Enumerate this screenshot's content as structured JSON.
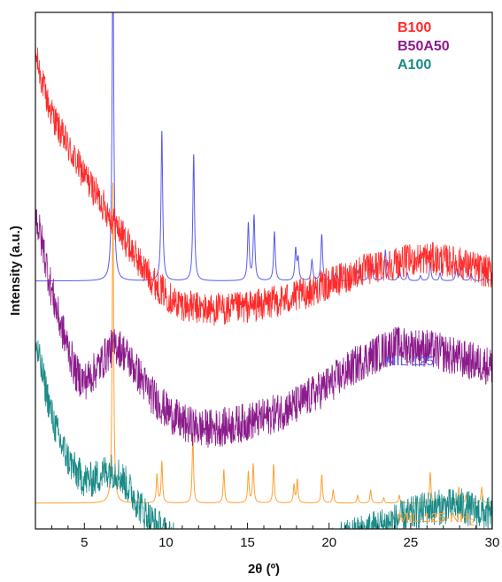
{
  "chart_data": {
    "type": "line",
    "title": "",
    "xlabel": "2θ (º)",
    "ylabel": "Intensity (a.u.)",
    "xlim": [
      2,
      30
    ],
    "x_ticks": [
      5,
      10,
      15,
      20,
      25,
      30
    ],
    "y_ticks": [],
    "grid": false,
    "legend_position": "top-right",
    "legend": [
      {
        "name": "B100",
        "color": "#ff2a2a"
      },
      {
        "name": "B50A50",
        "color": "#8b1a8b"
      },
      {
        "name": "A100",
        "color": "#1a8a86"
      }
    ],
    "series": [
      {
        "name": "B100",
        "color": "#ff2a2a",
        "noise": 3.2,
        "x": [
          2.0,
          2.3,
          2.8,
          3.5,
          4.5,
          5.5,
          6.5,
          7.5,
          8.5,
          9.5,
          10.5,
          11.5,
          12.5,
          14,
          16,
          18,
          20,
          22,
          24,
          26,
          28,
          30
        ],
        "values": [
          92,
          88,
          82,
          77,
          71,
          66,
          61,
          56,
          51,
          47,
          44,
          43,
          42.5,
          42.5,
          43.5,
          45,
          47.5,
          50,
          51.5,
          52.5,
          51.5,
          49.5
        ]
      },
      {
        "name": "B50A50",
        "color": "#8b1a8b",
        "noise": 3.8,
        "x": [
          2.0,
          2.5,
          3.0,
          3.5,
          4.0,
          4.5,
          5.0,
          5.5,
          6.0,
          6.5,
          7.0,
          7.5,
          8.0,
          8.5,
          9.0,
          10,
          11,
          12,
          13,
          14,
          16,
          18,
          20,
          22,
          24,
          26,
          28,
          30
        ],
        "values": [
          61,
          54,
          46,
          40,
          35,
          30,
          28.5,
          30,
          32,
          34.5,
          35.5,
          34,
          31.5,
          29,
          26.5,
          23,
          20.5,
          19.5,
          19.5,
          20,
          21.5,
          24,
          28,
          32.5,
          35.5,
          35,
          33,
          31.5
        ]
      },
      {
        "name": "A100",
        "color": "#1a8a86",
        "noise": 3.5,
        "x": [
          2.0,
          2.5,
          3.0,
          3.5,
          4.0,
          4.5,
          5.0,
          5.5,
          6.0,
          6.5,
          7.0,
          7.5,
          8.0,
          8.5,
          9.0,
          10,
          11,
          12,
          13,
          14,
          16,
          18,
          20,
          22,
          24,
          26,
          28,
          30
        ],
        "values": [
          36,
          29,
          22,
          17,
          13.5,
          11,
          9.5,
          9.5,
          10.5,
          11.5,
          11,
          9,
          6.5,
          4,
          2,
          -1,
          -3.5,
          -5.5,
          -6.5,
          -7,
          -6.5,
          -5,
          -3,
          -0.5,
          1.5,
          4,
          4.5,
          2.5
        ]
      }
    ],
    "reference_patterns": [
      {
        "name": "MIL-125",
        "label": "MIL-125",
        "color": "#5a5aee",
        "peaks": [
          {
            "x": 6.75,
            "h": 64
          },
          {
            "x": 9.75,
            "h": 29
          },
          {
            "x": 11.7,
            "h": 24.5
          },
          {
            "x": 15.05,
            "h": 11
          },
          {
            "x": 15.4,
            "h": 12.5
          },
          {
            "x": 16.65,
            "h": 9.5
          },
          {
            "x": 17.95,
            "h": 6
          },
          {
            "x": 18.1,
            "h": 4
          },
          {
            "x": 18.95,
            "h": 4
          },
          {
            "x": 19.55,
            "h": 9
          },
          {
            "x": 20.4,
            "h": 1.5
          },
          {
            "x": 21.75,
            "h": 2
          },
          {
            "x": 22.45,
            "h": 2
          },
          {
            "x": 22.6,
            "h": 3
          },
          {
            "x": 23.45,
            "h": 6
          },
          {
            "x": 24.3,
            "h": 3
          },
          {
            "x": 24.8,
            "h": 1.5
          },
          {
            "x": 25.6,
            "h": 1
          },
          {
            "x": 26.2,
            "h": 3.5
          },
          {
            "x": 26.8,
            "h": 1.5
          },
          {
            "x": 27.8,
            "h": 2.5
          },
          {
            "x": 28.05,
            "h": 2.5
          },
          {
            "x": 28.7,
            "h": 1.5
          },
          {
            "x": 29.6,
            "h": 2.5
          }
        ]
      },
      {
        "name": "MIL-125-NH2",
        "label_main": "MiL-125-NH",
        "label_sub": "2",
        "color": "#ffa033",
        "peaks": [
          {
            "x": 6.75,
            "h": 62
          },
          {
            "x": 9.45,
            "h": 5.5
          },
          {
            "x": 9.75,
            "h": 8
          },
          {
            "x": 11.65,
            "h": 13
          },
          {
            "x": 13.55,
            "h": 6.5
          },
          {
            "x": 15.05,
            "h": 6
          },
          {
            "x": 15.35,
            "h": 7.5
          },
          {
            "x": 16.6,
            "h": 7.5
          },
          {
            "x": 17.85,
            "h": 3.5
          },
          {
            "x": 18.05,
            "h": 4.5
          },
          {
            "x": 19.55,
            "h": 5.5
          },
          {
            "x": 20.25,
            "h": 2.5
          },
          {
            "x": 21.75,
            "h": 1.5
          },
          {
            "x": 22.55,
            "h": 2.5
          },
          {
            "x": 23.35,
            "h": 1
          },
          {
            "x": 24.3,
            "h": 1.5
          },
          {
            "x": 26.2,
            "h": 6
          },
          {
            "x": 27.95,
            "h": 3
          },
          {
            "x": 28.4,
            "h": 1.5
          },
          {
            "x": 29.35,
            "h": 3
          }
        ]
      }
    ]
  }
}
